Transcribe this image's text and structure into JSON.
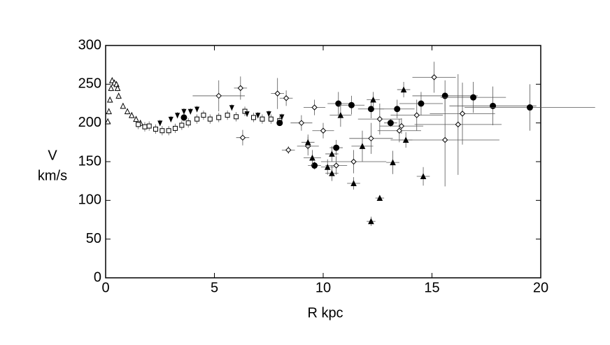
{
  "chart_data": {
    "type": "scatter",
    "xlabel": "R kpc",
    "ylabel": [
      "V",
      "km/s"
    ],
    "xlim": [
      0,
      20
    ],
    "ylim": [
      0,
      300
    ],
    "xticks": [
      0,
      5,
      10,
      15,
      20
    ],
    "yticks": [
      0,
      50,
      100,
      150,
      200,
      250,
      300
    ],
    "grid": false,
    "series": [
      {
        "marker": "open-triangle",
        "color": "#000000",
        "x": [
          0.1,
          0.15,
          0.2,
          0.25,
          0.3,
          0.4,
          0.5,
          0.55,
          0.6,
          0.8,
          1.0,
          1.2,
          1.4,
          1.6
        ],
        "values": [
          202,
          215,
          230,
          245,
          255,
          252,
          250,
          245,
          235,
          222,
          215,
          210,
          205,
          200
        ],
        "xerr": [
          0,
          0,
          0,
          0,
          0,
          0,
          0,
          0,
          0,
          0,
          0,
          0,
          0,
          0
        ],
        "yerr": [
          4,
          4,
          4,
          4,
          4,
          4,
          4,
          4,
          4,
          4,
          4,
          4,
          4,
          4
        ]
      },
      {
        "marker": "open-square",
        "color": "#000000",
        "x": [
          1.5,
          1.8,
          2.0,
          2.3,
          2.6,
          2.9,
          3.2,
          3.5,
          3.8,
          4.2,
          4.5,
          4.8,
          5.2,
          5.6,
          6.0,
          6.4,
          6.8,
          7.2,
          7.6,
          8.0
        ],
        "values": [
          198,
          195,
          196,
          192,
          190,
          190,
          193,
          197,
          200,
          205,
          210,
          205,
          207,
          210,
          208,
          215,
          207,
          205,
          205,
          203
        ],
        "xerr": [
          0,
          0,
          0,
          0,
          0,
          0,
          0,
          0,
          0,
          0,
          0,
          0,
          0,
          0,
          0,
          0,
          0,
          0,
          0,
          0
        ],
        "yerr": [
          6,
          6,
          6,
          6,
          6,
          6,
          6,
          6,
          6,
          6,
          6,
          6,
          6,
          6,
          6,
          6,
          6,
          6,
          6,
          6
        ]
      },
      {
        "marker": "inverted-triangle",
        "color": "#000000",
        "x": [
          2.5,
          3.0,
          3.3,
          3.6,
          3.9,
          4.2,
          5.8,
          6.5,
          7.0,
          7.5,
          8.1
        ],
        "values": [
          200,
          205,
          210,
          215,
          215,
          218,
          220,
          212,
          210,
          212,
          208
        ],
        "xerr": [
          0,
          0,
          0,
          0,
          0,
          0,
          0,
          0,
          0,
          0,
          0
        ],
        "yerr": [
          4,
          4,
          4,
          4,
          4,
          4,
          4,
          4,
          4,
          4,
          4
        ]
      },
      {
        "marker": "open-diamond",
        "color": "#000000",
        "x": [
          5.2,
          6.2,
          6.3,
          7.9,
          8.3,
          8.4,
          9.0,
          9.3,
          9.6,
          10.0,
          10.6,
          11.4,
          12.2,
          12.6,
          13.5,
          13.6,
          14.3,
          15.1,
          15.6,
          16.2,
          16.4
        ],
        "values": [
          235,
          245,
          181,
          238,
          232,
          165,
          200,
          170,
          220,
          190,
          145,
          150,
          180,
          205,
          190,
          196,
          210,
          259,
          178,
          198,
          212
        ],
        "xerr": [
          1.2,
          0.3,
          0.3,
          0.3,
          0.3,
          0.3,
          0.5,
          0.5,
          0.5,
          0.5,
          0.5,
          1.5,
          1,
          1,
          1,
          1,
          1.2,
          1,
          2.5,
          2,
          1.5
        ],
        "yerr": [
          20,
          15,
          10,
          20,
          10,
          5,
          10,
          12,
          10,
          10,
          12,
          15,
          20,
          20,
          15,
          10,
          20,
          20,
          60,
          65,
          40
        ]
      },
      {
        "marker": "filled-circle",
        "color": "#000000",
        "x": [
          3.6,
          8.0,
          9.6,
          10.6,
          10.7,
          11.3,
          12.2,
          13.1,
          13.4,
          14.5,
          15.6,
          16.9,
          17.8,
          19.5
        ],
        "values": [
          207,
          200,
          145,
          168,
          225,
          223,
          218,
          200,
          218,
          225,
          235,
          233,
          222,
          220
        ],
        "xerr": [
          0,
          0,
          0.3,
          0.3,
          0.5,
          0.6,
          0.6,
          0.3,
          0.8,
          1,
          1.5,
          1.5,
          2,
          3
        ],
        "yerr": [
          5,
          3,
          5,
          10,
          15,
          12,
          12,
          5,
          12,
          15,
          20,
          20,
          25,
          30
        ]
      },
      {
        "marker": "filled-triangle",
        "color": "#000000",
        "x": [
          9.3,
          9.5,
          10.2,
          10.4,
          10.4,
          10.8,
          11.4,
          11.8,
          12.2,
          12.3,
          12.6,
          13.2,
          13.7,
          13.8,
          14.6
        ],
        "values": [
          175,
          155,
          143,
          135,
          160,
          210,
          122,
          170,
          73,
          230,
          103,
          149,
          243,
          178,
          131
        ],
        "xerr": [
          0.3,
          0.4,
          0.3,
          0.3,
          0.3,
          0.5,
          0.3,
          0.5,
          0.2,
          0.3,
          0.2,
          0.3,
          0.3,
          0.3,
          0.3
        ],
        "yerr": [
          10,
          10,
          10,
          10,
          10,
          15,
          8,
          20,
          6,
          10,
          3,
          15,
          10,
          10,
          12
        ]
      }
    ]
  }
}
